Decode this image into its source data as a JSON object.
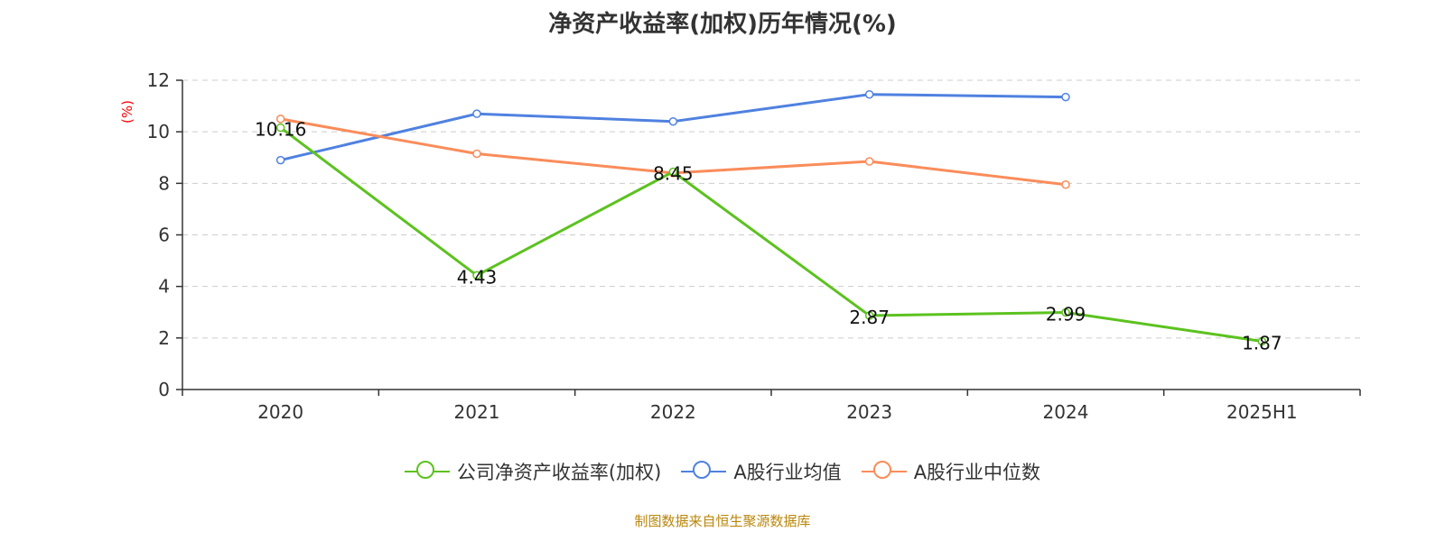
{
  "title": "净资产收益率(加权)历年情况(%)",
  "source": "制图数据来自恒生聚源数据库",
  "colors": {
    "company": "#5cc21f",
    "average": "#4f81e0",
    "median": "#fa8c5a",
    "axis": "#333333",
    "grid": "#cccccc",
    "unit": "#ff0000"
  },
  "chart_data": {
    "type": "line",
    "title": "净资产收益率(加权)历年情况(%)",
    "ylabel": "(%)",
    "xlabel": "",
    "categories": [
      "2020",
      "2021",
      "2022",
      "2023",
      "2024",
      "2025H1"
    ],
    "ylim": [
      0,
      12
    ],
    "yticks": [
      0,
      2,
      4,
      6,
      8,
      10,
      12
    ],
    "grid": true,
    "legend_position": "bottom",
    "series": [
      {
        "name": "公司净资产收益率(加权)",
        "key": "company",
        "values": [
          10.16,
          4.43,
          8.45,
          2.87,
          2.99,
          1.87
        ],
        "labels": [
          "10.16",
          "4.43",
          "8.45",
          "2.87",
          "2.99",
          "1.87"
        ]
      },
      {
        "name": "A股行业均值",
        "key": "average",
        "values": [
          8.9,
          10.7,
          10.4,
          11.45,
          11.35,
          null
        ]
      },
      {
        "name": "A股行业中位数",
        "key": "median",
        "values": [
          10.5,
          9.15,
          8.4,
          8.85,
          7.95,
          null
        ]
      }
    ]
  }
}
